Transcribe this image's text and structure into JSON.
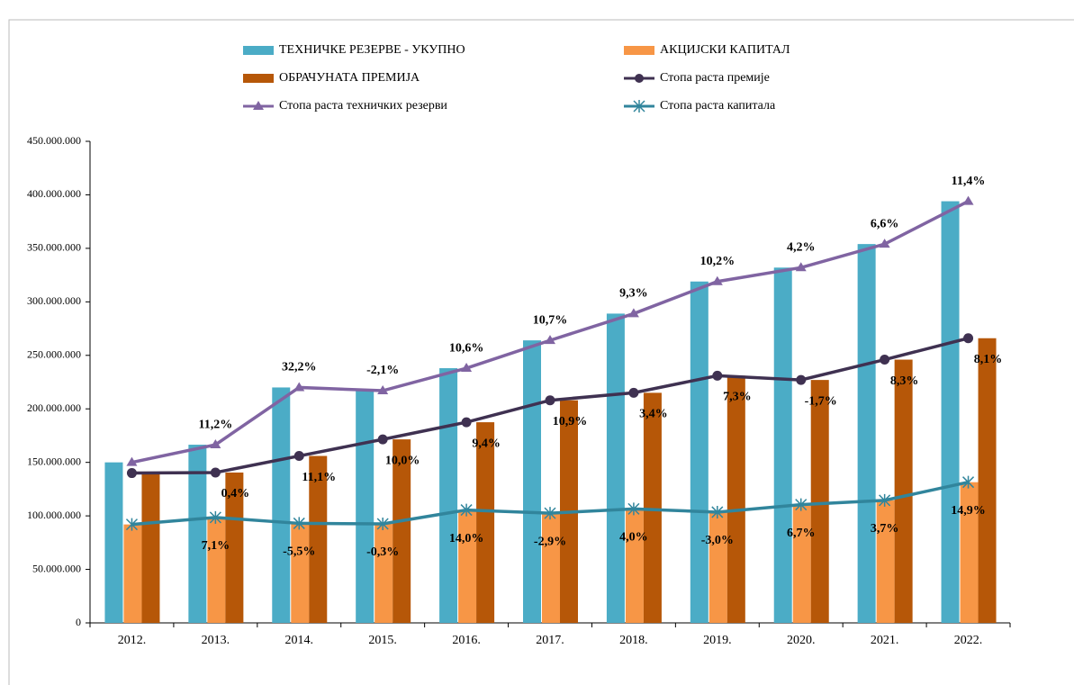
{
  "chart_data": {
    "type": "bar_line",
    "categories": [
      "2012.",
      "2013.",
      "2014.",
      "2015.",
      "2016.",
      "2017.",
      "2018.",
      "2019.",
      "2020.",
      "2021.",
      "2022."
    ],
    "ylim": [
      0,
      450000000
    ],
    "yticks": [
      0,
      {
        "value": 50000000,
        "label": "50.000.000"
      },
      {
        "value": 100000000,
        "label": "100.000.000"
      },
      {
        "value": 150000000,
        "label": "150.000.000"
      },
      {
        "value": 200000000,
        "label": "200.000.000"
      },
      {
        "value": 250000000,
        "label": "250.000.000"
      },
      {
        "value": 300000000,
        "label": "300.000.000"
      },
      {
        "value": 350000000,
        "label": "350.000.000"
      },
      {
        "value": 400000000,
        "label": "400.000.000"
      },
      {
        "value": 450000000,
        "label": "450.000.000"
      }
    ],
    "series": [
      {
        "name": "ТЕХНИЧКЕ РЕЗЕРВЕ - УКУПНО",
        "type": "bar",
        "color": "#4bacc6",
        "values": [
          150000000,
          166500000,
          220000000,
          217000000,
          238000000,
          264000000,
          289000000,
          319000000,
          332000000,
          354000000,
          394000000
        ]
      },
      {
        "name": "АКЦИЈСКИ КАПИТАЛ",
        "type": "bar",
        "color": "#f79646",
        "values": [
          92000000,
          98500000,
          93000000,
          92500000,
          105500000,
          102500000,
          106500000,
          103500000,
          110500000,
          114500000,
          131500000
        ]
      },
      {
        "name": "ОБРАЧУНАТА ПРЕМИЈА",
        "type": "bar",
        "color": "#b65708",
        "values": [
          140000000,
          140500000,
          156000000,
          171500000,
          187500000,
          208000000,
          215000000,
          231000000,
          227000000,
          246000000,
          266000000
        ]
      },
      {
        "name": "Стопа раста премије",
        "type": "line",
        "color": "#3f3151",
        "values": [
          null,
          0.4,
          11.1,
          10.0,
          9.4,
          10.9,
          3.4,
          7.3,
          -1.7,
          8.3,
          8.1
        ],
        "value_labels": [
          null,
          "0,4%",
          "11,1%",
          "10,0%",
          "9,4%",
          "10,9%",
          "3,4%",
          "7,3%",
          "-1,7%",
          "8,3%",
          "8,1%"
        ]
      },
      {
        "name": "Стопа раста техничких резерви",
        "type": "line",
        "color": "#8064a2",
        "values": [
          null,
          11.2,
          32.2,
          -2.1,
          10.6,
          10.7,
          9.3,
          10.2,
          4.2,
          6.6,
          11.4
        ],
        "value_labels": [
          null,
          "11,2%",
          "32,2%",
          "-2,1%",
          "10,6%",
          "10,7%",
          "9,3%",
          "10,2%",
          "4,2%",
          "6,6%",
          "11,4%"
        ]
      },
      {
        "name": "Стопа раста капитала",
        "type": "line",
        "color": "#31859c",
        "values": [
          null,
          7.1,
          -5.5,
          -0.3,
          14.0,
          -2.9,
          4.0,
          -3.0,
          6.7,
          3.7,
          14.9
        ],
        "value_labels": [
          null,
          "7,1%",
          "-5,5%",
          "-0,3%",
          "14,0%",
          "-2,9%",
          "4,0%",
          "-3,0%",
          "6,7%",
          "3,7%",
          "14,9%"
        ]
      }
    ]
  }
}
